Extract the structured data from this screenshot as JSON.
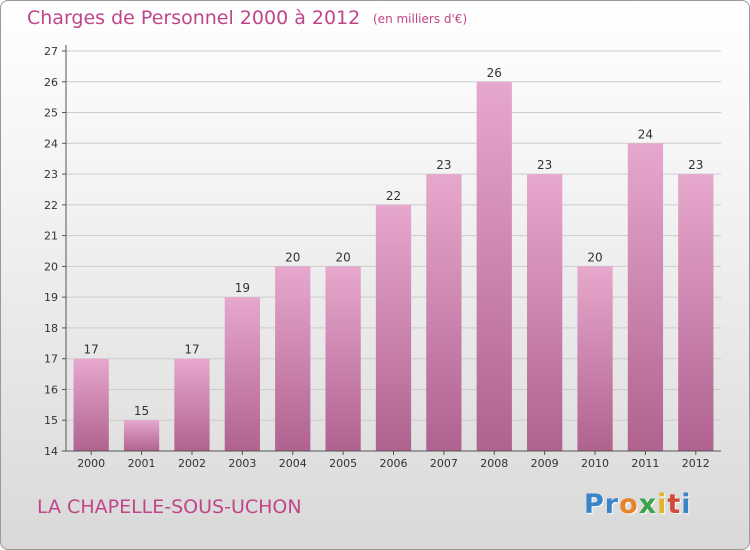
{
  "header": {
    "title": "Charges de Personnel 2000 à 2012",
    "subtitle": "(en milliers d'€)"
  },
  "footer": {
    "place": "LA CHAPELLE-SOUS-UCHON",
    "logo": "Proxiti",
    "logo_letters": [
      {
        "ch": "P",
        "color": "#3a84c8"
      },
      {
        "ch": "r",
        "color": "#3a84c8"
      },
      {
        "ch": "o",
        "color": "#e8832a"
      },
      {
        "ch": "x",
        "color": "#3aa34a"
      },
      {
        "ch": "i",
        "color": "#e2b628"
      },
      {
        "ch": "t",
        "color": "#d24a3a"
      },
      {
        "ch": "i",
        "color": "#3a84c8"
      }
    ]
  },
  "colors": {
    "bar_top": "#e7a8cd",
    "bar_bottom": "#b0628f",
    "axis": "#555555",
    "grid": "#cccccc",
    "text": "#333333",
    "accent": "#c0458a"
  },
  "chart_data": {
    "type": "bar",
    "title": "Charges de Personnel 2000 à 2012",
    "subtitle": "(en milliers d'€)",
    "categories": [
      "2000",
      "2001",
      "2002",
      "2003",
      "2004",
      "2005",
      "2006",
      "2007",
      "2008",
      "2009",
      "2010",
      "2011",
      "2012"
    ],
    "values": [
      17,
      15,
      17,
      19,
      20,
      20,
      22,
      23,
      26,
      23,
      20,
      24,
      23
    ],
    "ylim": [
      14,
      27
    ],
    "yticks": [
      14,
      15,
      16,
      17,
      18,
      19,
      20,
      21,
      22,
      23,
      24,
      25,
      26,
      27
    ],
    "xlabel": "",
    "ylabel": "",
    "grid": true,
    "data_labels": true
  }
}
